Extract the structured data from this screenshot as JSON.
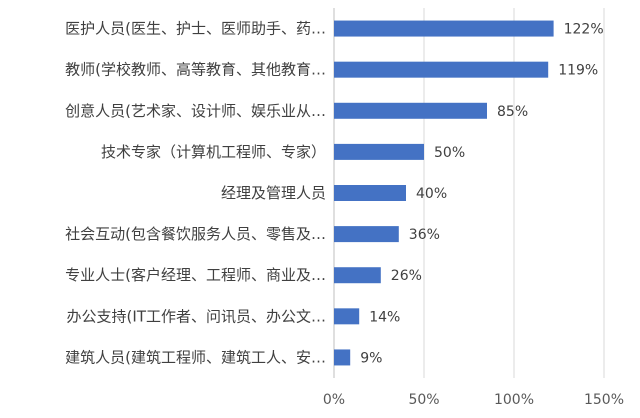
{
  "chart_data": {
    "type": "bar",
    "orientation": "horizontal",
    "title": "",
    "xlabel": "",
    "ylabel": "",
    "categories": [
      "医护人员(医生、护士、医师助手、药…",
      "教师(学校教师、高等教育、其他教育…",
      "创意人员(艺术家、设计师、娱乐业从…",
      "技术专家（计算机工程师、专家）",
      "经理及管理人员",
      "社会互动(包含餐饮服务人员、零售及…",
      "专业人士(客户经理、工程师、商业及…",
      "办公支持(IT工作者、问讯员、办公文…",
      "建筑人员(建筑工程师、建筑工人、安…"
    ],
    "values": [
      122,
      119,
      85,
      50,
      40,
      36,
      26,
      14,
      9
    ],
    "value_labels": [
      "122%",
      "119%",
      "85%",
      "50%",
      "40%",
      "36%",
      "26%",
      "14%",
      "9%"
    ],
    "xlim": [
      0,
      150
    ],
    "x_ticks": [
      0,
      50,
      100,
      150
    ],
    "x_tick_labels": [
      "0%",
      "50%",
      "100%",
      "150%"
    ],
    "bar_color": "#4472c4",
    "grid": true,
    "legend": "none"
  }
}
